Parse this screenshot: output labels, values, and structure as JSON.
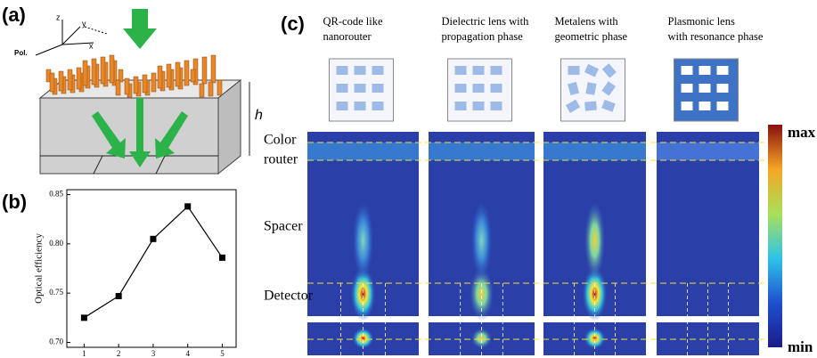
{
  "panel_labels": [
    "(a)",
    "(b)",
    "(c)"
  ],
  "panel_a": {
    "axis_labels": [
      "z",
      "y",
      "x",
      "Pol."
    ],
    "height_label": "h"
  },
  "chart_data": {
    "type": "line",
    "y_label": "Optical efficiency",
    "x": [
      1,
      2,
      3,
      4,
      5
    ],
    "series": [
      {
        "name": "Optical efficiency",
        "color": "#000000",
        "values": [
          0.725,
          0.747,
          0.805,
          0.838,
          0.786
        ]
      }
    ],
    "xlim": [
      0.5,
      5.4
    ],
    "xticks": [
      1,
      2,
      3,
      4,
      5
    ],
    "ylim": [
      0.695,
      0.855
    ],
    "yticks": [
      {
        "value": 0.7,
        "label": "0.70"
      },
      0.75,
      {
        "value": 0.8,
        "label": "0.80"
      },
      0.85
    ]
  },
  "panel_c": {
    "columns": [
      [
        "QR-code like",
        "nanorouter"
      ],
      [
        "Dielectric lens with",
        "propagation phase"
      ],
      [
        "Metalens with",
        "geometric phase"
      ],
      [
        "Plasmonic lens",
        "with resonance phase"
      ]
    ],
    "row_labels": [
      [
        "Color",
        "router"
      ],
      [
        "Spacer"
      ],
      [
        "Detector"
      ]
    ],
    "colorbar": [
      "max",
      "min"
    ]
  }
}
